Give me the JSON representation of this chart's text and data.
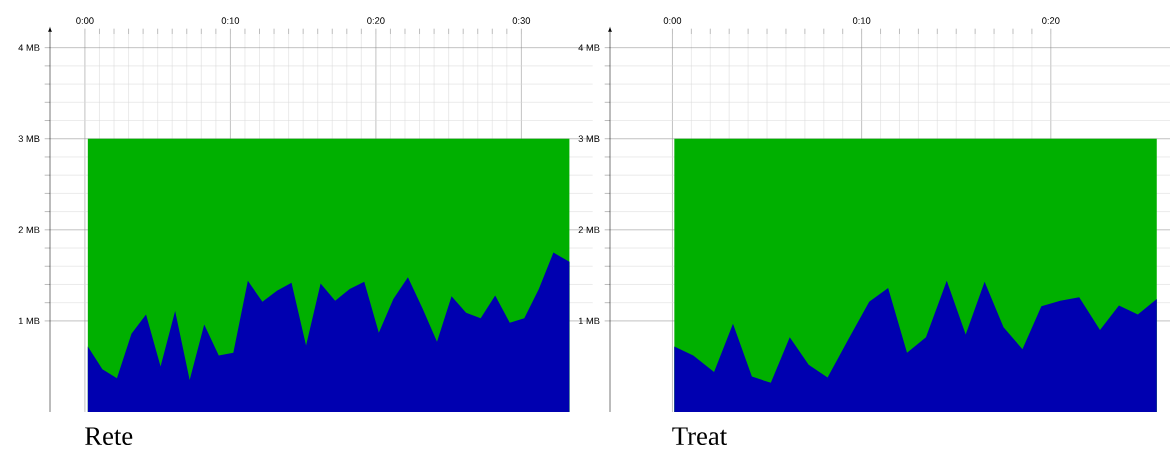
{
  "chart_data": [
    {
      "type": "area",
      "title": "Rete",
      "xlim": [
        -2.4,
        34.9
      ],
      "ylim": [
        0,
        4.15
      ],
      "grid": true,
      "xticks": [
        {
          "value": 0,
          "label": "0:00"
        },
        {
          "value": 10,
          "label": "0:10"
        },
        {
          "value": 20,
          "label": "0:20"
        },
        {
          "value": 30,
          "label": "0:30"
        }
      ],
      "yticks": [
        {
          "value": 1,
          "label": "1 MB"
        },
        {
          "value": 2,
          "label": "2 MB"
        },
        {
          "value": 3,
          "label": "3 MB"
        },
        {
          "value": 4,
          "label": "4 MB"
        }
      ],
      "series": [
        {
          "color": "#00b000",
          "x": [
            0.2,
            33.3
          ],
          "values": [
            3,
            3
          ]
        },
        {
          "color": "#0000b0",
          "x": [
            0.2,
            1.2,
            2.2,
            3.2,
            4.2,
            5.2,
            6.2,
            7.2,
            8.2,
            9.2,
            10.2,
            11.2,
            12.2,
            13.2,
            14.2,
            15.2,
            16.2,
            17.2,
            18.2,
            19.2,
            20.2,
            21.2,
            22.2,
            23.2,
            24.2,
            25.2,
            26.2,
            27.2,
            28.2,
            29.2,
            30.2,
            31.2,
            32.2,
            33.3
          ],
          "values": [
            0.72,
            0.47,
            0.37,
            0.86,
            1.07,
            0.5,
            1.11,
            0.35,
            0.96,
            0.62,
            0.65,
            1.44,
            1.21,
            1.33,
            1.42,
            0.73,
            1.41,
            1.22,
            1.35,
            1.43,
            0.87,
            1.24,
            1.48,
            1.14,
            0.77,
            1.27,
            1.09,
            1.03,
            1.28,
            0.98,
            1.03,
            1.35,
            1.75,
            1.65
          ]
        }
      ]
    },
    {
      "type": "area",
      "title": "Treat",
      "xlim": [
        -3.3,
        26.3
      ],
      "ylim": [
        0,
        4.15
      ],
      "grid": true,
      "xticks": [
        {
          "value": 0,
          "label": "0:00"
        },
        {
          "value": 10,
          "label": "0:10"
        },
        {
          "value": 20,
          "label": "0:20"
        }
      ],
      "yticks": [
        {
          "value": 1,
          "label": "1 MB"
        },
        {
          "value": 2,
          "label": "2 MB"
        },
        {
          "value": 3,
          "label": "3 MB"
        },
        {
          "value": 4,
          "label": "4 MB"
        }
      ],
      "series": [
        {
          "color": "#00b000",
          "x": [
            0.1,
            25.6
          ],
          "values": [
            3,
            3
          ]
        },
        {
          "color": "#0000b0",
          "x": [
            0.1,
            1.1,
            2.2,
            3.2,
            4.2,
            5.2,
            6.2,
            7.2,
            8.2,
            9.3,
            10.4,
            11.4,
            12.4,
            13.4,
            14.5,
            15.5,
            16.5,
            17.5,
            18.5,
            19.5,
            20.5,
            21.5,
            22.6,
            23.6,
            24.6,
            25.6
          ],
          "values": [
            0.72,
            0.62,
            0.44,
            0.97,
            0.39,
            0.32,
            0.82,
            0.52,
            0.38,
            0.8,
            1.21,
            1.36,
            0.65,
            0.82,
            1.44,
            0.85,
            1.43,
            0.93,
            0.69,
            1.16,
            1.22,
            1.26,
            0.9,
            1.17,
            1.07,
            1.24
          ]
        }
      ]
    }
  ]
}
